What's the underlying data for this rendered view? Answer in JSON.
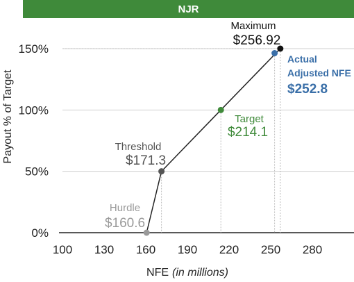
{
  "header": {
    "title": "NJR"
  },
  "chart_data": {
    "type": "line",
    "title": "NJR",
    "xlabel": "NFE",
    "xlabel_note": "(in millions)",
    "ylabel": "Payout % of Target",
    "xlim": [
      100,
      300
    ],
    "ylim": [
      0,
      150
    ],
    "x_ticks": [
      100,
      130,
      160,
      190,
      220,
      250,
      280
    ],
    "y_ticks": [
      0,
      50,
      100,
      150
    ],
    "y_tick_labels": [
      "0%",
      "50%",
      "100%",
      "150%"
    ],
    "grid": true,
    "series": [
      {
        "points": [
          {
            "x": 160.6,
            "y": 0
          },
          {
            "x": 171.3,
            "y": 50
          },
          {
            "x": 214.1,
            "y": 100
          },
          {
            "x": 256.92,
            "y": 150
          }
        ]
      }
    ],
    "annotations": [
      {
        "name": "Hurdle",
        "value_label": "$160.6",
        "x": 160.6,
        "y": 0,
        "color": "#999999"
      },
      {
        "name": "Threshold",
        "value_label": "$171.3",
        "x": 171.3,
        "y": 50,
        "color": "#555555"
      },
      {
        "name": "Target",
        "value_label": "$214.1",
        "x": 214.1,
        "y": 100,
        "color": "#3f8a3a"
      },
      {
        "name": "Maximum",
        "value_label": "$256.92",
        "x": 256.92,
        "y": 150,
        "color": "#111111"
      },
      {
        "name_line1": "Actual",
        "name_line2": "Adjusted NFE",
        "value_label": "$252.8",
        "x": 252.8,
        "y": 146.3,
        "color": "#3a6fa8"
      }
    ]
  }
}
